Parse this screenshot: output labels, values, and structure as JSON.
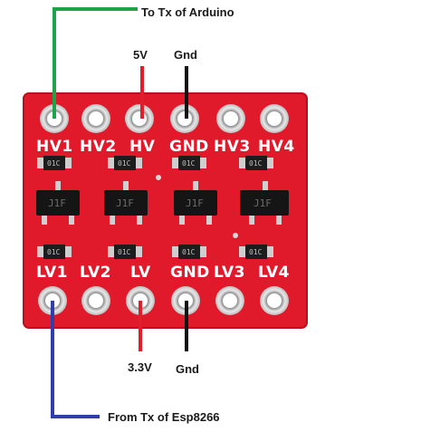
{
  "labels": {
    "hv1_wire": "To Tx of Arduino",
    "hv_wire": "5V",
    "gnd_top_wire": "Gnd",
    "lv_wire": "3.3V",
    "gnd_bottom_wire": "Gnd",
    "lv1_wire": "From Tx of Esp8266"
  },
  "board": {
    "top_pins": [
      "HV1",
      "HV2",
      "HV",
      "GND",
      "HV3",
      "HV4"
    ],
    "bottom_pins": [
      "LV1",
      "LV2",
      "LV",
      "GND",
      "LV3",
      "LV4"
    ],
    "resistor_marking": "01C",
    "transistor_marking": "J1F"
  },
  "colors": {
    "board": "#e0192b",
    "pad": "#d9d9d9",
    "green_wire": "#1ea34a",
    "red_wire": "#e01e2c",
    "black_wire": "#111111",
    "blue_wire": "#2f3ea8"
  }
}
